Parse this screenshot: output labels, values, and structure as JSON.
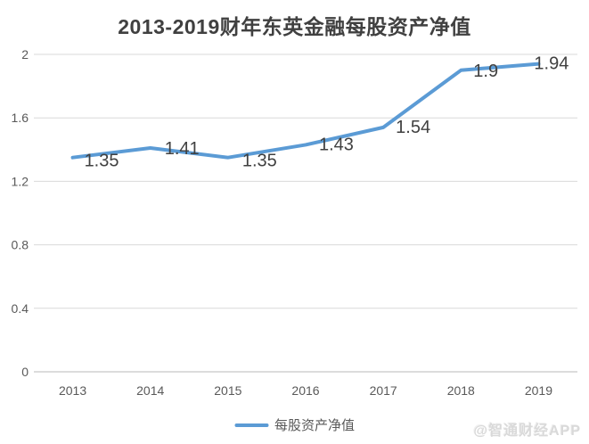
{
  "chart_data": {
    "type": "line",
    "title": "2013-2019财年东英金融每股资产净值",
    "categories": [
      "2013",
      "2014",
      "2015",
      "2016",
      "2017",
      "2018",
      "2019"
    ],
    "series": [
      {
        "name": "每股资产净值",
        "values": [
          1.35,
          1.41,
          1.35,
          1.43,
          1.54,
          1.9,
          1.94
        ],
        "point_labels": [
          "1.35",
          "1.41",
          "1.35",
          "1.43",
          "1.54",
          "1.9",
          "1.94"
        ],
        "color": "#5b9bd5"
      }
    ],
    "xlabel": "",
    "ylabel": "",
    "ylim": [
      0,
      2
    ],
    "yticks": [
      0,
      0.4,
      0.8,
      1.2,
      1.6,
      2
    ],
    "ytick_labels": [
      "0",
      "0.4",
      "0.8",
      "1.2",
      "1.6",
      "2"
    ],
    "grid": true,
    "legend_position": "bottom"
  },
  "legend": {
    "label": "每股资产净值"
  },
  "watermark": "@智通财经APP",
  "colors": {
    "line": "#5b9bd5",
    "gridline": "#d9d9d9",
    "axis_line": "#c6c6c6",
    "tick_label": "#595959",
    "data_label": "#404040",
    "title": "#404040",
    "watermark": "#d9d9d9",
    "background": "#ffffff"
  }
}
